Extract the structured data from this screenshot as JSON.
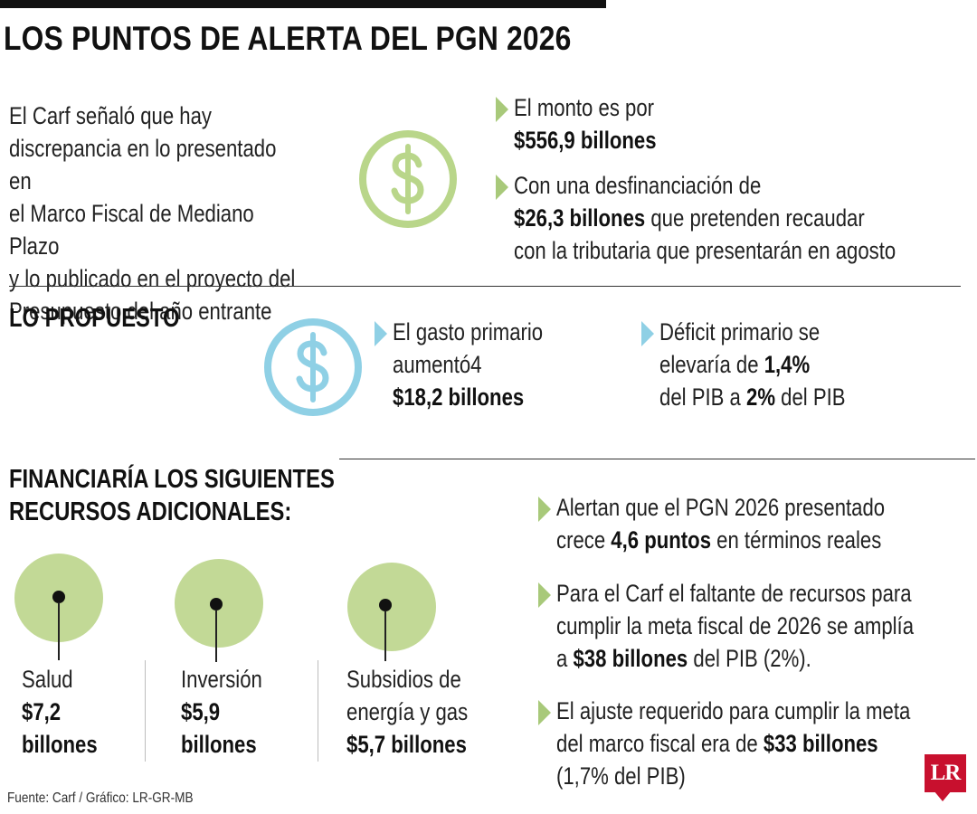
{
  "title": "LOS PUNTOS DE ALERTA DEL PGN 2026",
  "intro": {
    "lines": [
      "El Carf señaló que hay",
      "discrepancia en lo presentado en",
      "el Marco Fiscal de Mediano Plazo",
      "y lo publicado en el proyecto del",
      "Presupuesto del año entrante"
    ]
  },
  "top_bullets": [
    {
      "pre": "El monto es por",
      "bold": "$556,9 billones",
      "post": ""
    },
    {
      "pre": "Con una desfinanciación de",
      "bold": "$26,3 billones",
      "post_inline": " que pretenden recaudar",
      "post": "con la tributaria que presentarán en agosto"
    }
  ],
  "propuesto": {
    "heading": "LO PROPUESTO",
    "gasto": {
      "line1": "El gasto primario",
      "line2": "aumentó4",
      "bold": "$18,2 billones"
    },
    "deficit": {
      "line1": "Déficit primario se",
      "line2_pre": "elevaría de ",
      "line2_bold": "1,4%",
      "line3_pre": "del PIB a ",
      "line3_bold": "2%",
      "line3_post": " del PIB"
    }
  },
  "financiaria": {
    "heading_line1": "FINANCIARÍA LOS SIGUIENTES",
    "heading_line2": "RECURSOS ADICIONALES:",
    "items": [
      {
        "label": "Salud",
        "value1": "$7,2",
        "value2": "billones"
      },
      {
        "label": "Inversión",
        "value1": "$5,9",
        "value2": "billones"
      },
      {
        "label1": "Subsidios de",
        "label2": "energía y gas",
        "value": "$5,7 billones"
      }
    ]
  },
  "alerts": [
    {
      "l1": "Alertan que el PGN 2026 presentado",
      "l2_pre": "crece ",
      "l2_bold": "4,6 puntos",
      "l2_post": " en términos reales"
    },
    {
      "l1": "Para el Carf el faltante de recursos para",
      "l2": "cumplir la meta fiscal de 2026 se amplía",
      "l3_pre": "a ",
      "l3_bold": "$38 billones",
      "l3_post": " del PIB (2%)."
    },
    {
      "l1": "El ajuste requerido para cumplir la meta",
      "l2_pre": "del marco fiscal era de ",
      "l2_bold": "$33 billones",
      "l3": "(1,7% del PIB)"
    }
  ],
  "source": "Fuente: Carf / Gráfico: LR-GR-MB",
  "logo": "LR",
  "colors": {
    "green": "#c2d996",
    "green_icon": "#b9d68a",
    "blue_icon": "#8fd0e5",
    "logo_red": "#c8102e"
  },
  "icons": {
    "coin_green": "dollar-coin-icon",
    "coin_blue": "dollar-coin-icon",
    "bullet": "triangle-right-icon"
  }
}
